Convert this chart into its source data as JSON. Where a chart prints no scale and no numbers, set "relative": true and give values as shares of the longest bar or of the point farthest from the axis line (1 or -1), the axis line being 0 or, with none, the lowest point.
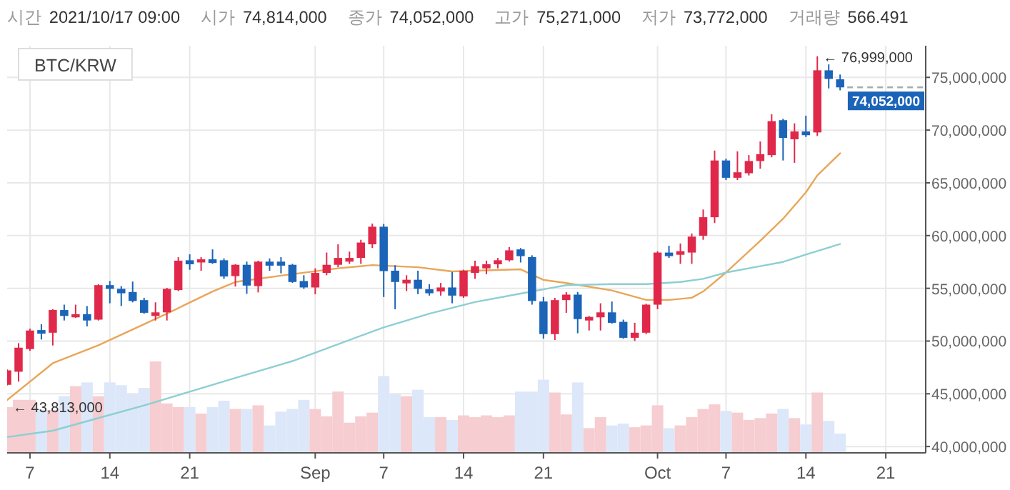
{
  "chart_data": [
    {
      "type": "candlestick",
      "title": "BTC/KRW",
      "annotations": [
        "시간",
        "2021/10/17 09:00",
        "시가",
        "74,814,000",
        "종가",
        "74,052,000",
        "고가",
        "75,271,000",
        "저가",
        "73,772,000",
        "거래량",
        "566.491",
        {
          "text": "← 76,999,000",
          "x": "2021-10-15",
          "y": 76999000
        },
        {
          "text": "← 43,813,000",
          "x": "2021-08-05",
          "y": 43813000
        }
      ],
      "x": [
        "2021-08-05",
        "2021-08-06",
        "2021-08-07",
        "2021-08-08",
        "2021-08-09",
        "2021-08-10",
        "2021-08-11",
        "2021-08-12",
        "2021-08-13",
        "2021-08-14",
        "2021-08-15",
        "2021-08-16",
        "2021-08-17",
        "2021-08-18",
        "2021-08-19",
        "2021-08-20",
        "2021-08-21",
        "2021-08-22",
        "2021-08-23",
        "2021-08-24",
        "2021-08-25",
        "2021-08-26",
        "2021-08-27",
        "2021-08-28",
        "2021-08-29",
        "2021-08-30",
        "2021-08-31",
        "2021-09-01",
        "2021-09-02",
        "2021-09-03",
        "2021-09-04",
        "2021-09-05",
        "2021-09-06",
        "2021-09-07",
        "2021-09-08",
        "2021-09-09",
        "2021-09-10",
        "2021-09-11",
        "2021-09-12",
        "2021-09-13",
        "2021-09-14",
        "2021-09-15",
        "2021-09-16",
        "2021-09-17",
        "2021-09-18",
        "2021-09-19",
        "2021-09-20",
        "2021-09-21",
        "2021-09-22",
        "2021-09-23",
        "2021-09-24",
        "2021-09-25",
        "2021-09-26",
        "2021-09-27",
        "2021-09-28",
        "2021-09-29",
        "2021-09-30",
        "2021-10-01",
        "2021-10-02",
        "2021-10-03",
        "2021-10-04",
        "2021-10-05",
        "2021-10-06",
        "2021-10-07",
        "2021-10-08",
        "2021-10-09",
        "2021-10-10",
        "2021-10-11",
        "2021-10-12",
        "2021-10-13",
        "2021-10-14",
        "2021-10-15",
        "2021-10-16",
        "2021-10-17"
      ],
      "ohlc": [
        [
          45850000,
          47300000,
          45800000,
          47220000
        ],
        [
          47090000,
          49800000,
          46150000,
          49370000
        ],
        [
          49240000,
          51170000,
          49070000,
          51000000
        ],
        [
          51040000,
          51600000,
          50140000,
          50700000
        ],
        [
          50790000,
          53020000,
          49580000,
          52940000
        ],
        [
          52940000,
          53450000,
          51950000,
          52380000
        ],
        [
          52250000,
          53450000,
          52200000,
          52550000
        ],
        [
          52550000,
          53320000,
          51390000,
          51950000
        ],
        [
          52030000,
          55380000,
          51950000,
          55300000
        ],
        [
          55300000,
          55690000,
          53580000,
          54950000
        ],
        [
          54950000,
          55210000,
          53320000,
          54530000
        ],
        [
          54650000,
          55640000,
          53670000,
          53800000
        ],
        [
          53880000,
          54100000,
          52590000,
          52680000
        ],
        [
          52380000,
          53670000,
          51950000,
          52720000
        ],
        [
          52720000,
          55040000,
          51950000,
          54950000
        ],
        [
          54830000,
          57960000,
          54740000,
          57620000
        ],
        [
          57660000,
          58220000,
          56760000,
          57280000
        ],
        [
          57450000,
          57960000,
          56670000,
          57750000
        ],
        [
          57750000,
          58690000,
          57320000,
          57400000
        ],
        [
          57660000,
          57830000,
          55900000,
          56120000
        ],
        [
          56160000,
          57300000,
          55170000,
          57230000
        ],
        [
          57230000,
          57530000,
          54480000,
          55260000
        ],
        [
          55210000,
          57620000,
          54610000,
          57530000
        ],
        [
          57530000,
          57830000,
          56670000,
          57150000
        ],
        [
          57530000,
          57960000,
          56420000,
          57150000
        ],
        [
          57230000,
          57320000,
          55510000,
          55600000
        ],
        [
          55690000,
          56240000,
          54950000,
          55080000
        ],
        [
          55080000,
          56890000,
          54440000,
          56460000
        ],
        [
          56460000,
          58390000,
          56240000,
          57230000
        ],
        [
          57230000,
          59170000,
          57000000,
          57880000
        ],
        [
          57530000,
          58480000,
          57320000,
          57880000
        ],
        [
          57880000,
          59600000,
          57320000,
          59340000
        ],
        [
          59170000,
          61140000,
          58820000,
          60840000
        ],
        [
          60840000,
          61100000,
          54180000,
          56630000
        ],
        [
          56670000,
          57190000,
          53020000,
          55600000
        ],
        [
          55470000,
          56240000,
          54740000,
          55810000
        ],
        [
          55810000,
          56670000,
          54440000,
          54950000
        ],
        [
          54910000,
          55380000,
          54310000,
          54530000
        ],
        [
          54700000,
          55510000,
          54310000,
          55080000
        ],
        [
          55080000,
          56550000,
          53580000,
          54310000
        ],
        [
          54230000,
          56760000,
          54100000,
          56670000
        ],
        [
          56460000,
          57620000,
          55900000,
          57100000
        ],
        [
          56890000,
          57620000,
          56330000,
          57280000
        ],
        [
          57280000,
          57880000,
          56890000,
          57660000
        ],
        [
          57660000,
          58910000,
          57530000,
          58600000
        ],
        [
          58690000,
          58820000,
          57450000,
          58050000
        ],
        [
          57960000,
          58130000,
          53450000,
          53800000
        ],
        [
          53750000,
          54180000,
          50230000,
          50660000
        ],
        [
          50660000,
          54100000,
          50100000,
          53880000
        ],
        [
          53880000,
          54650000,
          52680000,
          54400000
        ],
        [
          54400000,
          54650000,
          50740000,
          52080000
        ],
        [
          51950000,
          52380000,
          51000000,
          52290000
        ],
        [
          52250000,
          53580000,
          51000000,
          52720000
        ],
        [
          52720000,
          53750000,
          51650000,
          51730000
        ],
        [
          51820000,
          52030000,
          50230000,
          50310000
        ],
        [
          50310000,
          51730000,
          50010000,
          50790000
        ],
        [
          50790000,
          53540000,
          50660000,
          53450000
        ],
        [
          53450000,
          58520000,
          53020000,
          58390000
        ],
        [
          58390000,
          59040000,
          57880000,
          58050000
        ],
        [
          58180000,
          59250000,
          57320000,
          58520000
        ],
        [
          58390000,
          60200000,
          57320000,
          59900000
        ],
        [
          59980000,
          62470000,
          59600000,
          61740000
        ],
        [
          61740000,
          68060000,
          61190000,
          67120000
        ],
        [
          67120000,
          67290000,
          65270000,
          65480000
        ],
        [
          65480000,
          67980000,
          65270000,
          66000000
        ],
        [
          65910000,
          67630000,
          65700000,
          67070000
        ],
        [
          67070000,
          68920000,
          66340000,
          67720000
        ],
        [
          67630000,
          71500000,
          67420000,
          70850000
        ],
        [
          70940000,
          71070000,
          67120000,
          69260000
        ],
        [
          69130000,
          70640000,
          66900000,
          69870000
        ],
        [
          69870000,
          71370000,
          69350000,
          69520000
        ],
        [
          69780000,
          76999000,
          69440000,
          75670000
        ],
        [
          75670000,
          76230000,
          73950000,
          74850000
        ],
        [
          74814000,
          75271000,
          73772000,
          74052000
        ]
      ],
      "colors": [
        "#e0294a",
        "#e0294a",
        "#e0294a",
        "#1b64b8",
        "#e0294a",
        "#1b64b8",
        "#e0294a",
        "#1b64b8",
        "#e0294a",
        "#1b64b8",
        "#1b64b8",
        "#1b64b8",
        "#1b64b8",
        "#e0294a",
        "#e0294a",
        "#e0294a",
        "#1b64b8",
        "#e0294a",
        "#1b64b8",
        "#1b64b8",
        "#e0294a",
        "#1b64b8",
        "#e0294a",
        "#1b64b8",
        "#1b64b8",
        "#1b64b8",
        "#1b64b8",
        "#e0294a",
        "#e0294a",
        "#e0294a",
        "#e0294a",
        "#e0294a",
        "#e0294a",
        "#1b64b8",
        "#1b64b8",
        "#e0294a",
        "#1b64b8",
        "#1b64b8",
        "#e0294a",
        "#1b64b8",
        "#e0294a",
        "#e0294a",
        "#e0294a",
        "#e0294a",
        "#e0294a",
        "#1b64b8",
        "#1b64b8",
        "#1b64b8",
        "#e0294a",
        "#e0294a",
        "#1b64b8",
        "#e0294a",
        "#e0294a",
        "#1b64b8",
        "#1b64b8",
        "#e0294a",
        "#e0294a",
        "#e0294a",
        "#1b64b8",
        "#e0294a",
        "#e0294a",
        "#e0294a",
        "#e0294a",
        "#1b64b8",
        "#e0294a",
        "#e0294a",
        "#e0294a",
        "#e0294a",
        "#1b64b8",
        "#e0294a",
        "#1b64b8",
        "#e0294a",
        "#1b64b8",
        "#1b64b8"
      ],
      "series": [
        {
          "type": "line",
          "color": "#e8a659",
          "x": [
            "2021-08-05",
            "2021-08-09",
            "2021-08-13",
            "2021-08-19",
            "2021-08-23",
            "2021-08-25",
            "2021-08-29",
            "2021-09-03",
            "2021-09-06",
            "2021-09-10",
            "2021-09-13",
            "2021-09-19",
            "2021-09-21",
            "2021-09-23",
            "2021-09-27",
            "2021-09-30",
            "2021-10-02",
            "2021-10-04",
            "2021-10-05",
            "2021-10-07",
            "2021-10-10",
            "2021-10-12",
            "2021-10-14",
            "2021-10-15",
            "2021-10-17"
          ],
          "values": [
            44400000,
            47900000,
            49600000,
            52600000,
            54700000,
            55600000,
            56200000,
            56900000,
            57200000,
            57000000,
            56600000,
            56800000,
            55800000,
            55500000,
            54800000,
            53900000,
            53900000,
            54100000,
            54700000,
            56500000,
            59500000,
            61600000,
            64100000,
            65700000,
            67800000
          ]
        },
        {
          "type": "line",
          "color": "#8ccfd3",
          "x": [
            "2021-08-05",
            "2021-08-09",
            "2021-08-13",
            "2021-08-17",
            "2021-08-21",
            "2021-08-25",
            "2021-08-30",
            "2021-09-02",
            "2021-09-07",
            "2021-09-11",
            "2021-09-15",
            "2021-09-19",
            "2021-09-23",
            "2021-09-27",
            "2021-09-30",
            "2021-10-03",
            "2021-10-05",
            "2021-10-07",
            "2021-10-10",
            "2021-10-12",
            "2021-10-14",
            "2021-10-17"
          ],
          "values": [
            40900000,
            41500000,
            42700000,
            43900000,
            45200000,
            46500000,
            48100000,
            49300000,
            51300000,
            52600000,
            53700000,
            54500000,
            55300000,
            55400000,
            55400000,
            55600000,
            55900000,
            56500000,
            57100000,
            57500000,
            58200000,
            59200000
          ]
        }
      ],
      "xlim": [
        "2021-08-05",
        "2021-10-24T12:00"
      ],
      "xticks": [
        {
          "value": "2021-08-07",
          "label": "7"
        },
        {
          "value": "2021-08-14",
          "label": "14"
        },
        {
          "value": "2021-08-21",
          "label": "21"
        },
        {
          "value": "2021-09-01",
          "label": "Sep"
        },
        {
          "value": "2021-09-07",
          "label": "7"
        },
        {
          "value": "2021-09-14",
          "label": "14"
        },
        {
          "value": "2021-09-21",
          "label": "21"
        },
        {
          "value": "2021-10-01",
          "label": "Oct"
        },
        {
          "value": "2021-10-07",
          "label": "7"
        },
        {
          "value": "2021-10-14",
          "label": "14"
        },
        {
          "value": "2021-10-21",
          "label": "21"
        }
      ],
      "ylim": [
        39400000,
        78000000
      ],
      "yticks": [
        {
          "value": 40000000,
          "label": "40,000,000"
        },
        {
          "value": 45000000,
          "label": "45,000,000"
        },
        {
          "value": 50000000,
          "label": "50,000,000"
        },
        {
          "value": 55000000,
          "label": "55,000,000"
        },
        {
          "value": 60000000,
          "label": "60,000,000"
        },
        {
          "value": 65000000,
          "label": "65,000,000"
        },
        {
          "value": 70000000,
          "label": "70,000,000"
        },
        {
          "value": 75000000,
          "label": "75,000,000"
        }
      ],
      "ref_lines": [
        {
          "axis": "y",
          "value": 74052000,
          "label": "74,052,000",
          "line_style": "dashed"
        }
      ],
      "grid": true
    },
    {
      "type": "bar",
      "relative": true,
      "xlim": [
        "2021-08-05",
        "2021-10-24T12:00"
      ],
      "x": [
        "2021-08-05",
        "2021-08-06",
        "2021-08-07",
        "2021-08-08",
        "2021-08-09",
        "2021-08-10",
        "2021-08-11",
        "2021-08-12",
        "2021-08-13",
        "2021-08-14",
        "2021-08-15",
        "2021-08-16",
        "2021-08-17",
        "2021-08-18",
        "2021-08-19",
        "2021-08-20",
        "2021-08-21",
        "2021-08-22",
        "2021-08-23",
        "2021-08-24",
        "2021-08-25",
        "2021-08-26",
        "2021-08-27",
        "2021-08-28",
        "2021-08-29",
        "2021-08-30",
        "2021-08-31",
        "2021-09-01",
        "2021-09-02",
        "2021-09-03",
        "2021-09-04",
        "2021-09-05",
        "2021-09-06",
        "2021-09-07",
        "2021-09-08",
        "2021-09-09",
        "2021-09-10",
        "2021-09-11",
        "2021-09-12",
        "2021-09-13",
        "2021-09-14",
        "2021-09-15",
        "2021-09-16",
        "2021-09-17",
        "2021-09-18",
        "2021-09-19",
        "2021-09-20",
        "2021-09-21",
        "2021-09-22",
        "2021-09-23",
        "2021-09-24",
        "2021-09-25",
        "2021-09-26",
        "2021-09-27",
        "2021-09-28",
        "2021-09-29",
        "2021-09-30",
        "2021-10-01",
        "2021-10-02",
        "2021-10-03",
        "2021-10-04",
        "2021-10-05",
        "2021-10-06",
        "2021-10-07",
        "2021-10-08",
        "2021-10-09",
        "2021-10-10",
        "2021-10-11",
        "2021-10-12",
        "2021-10-13",
        "2021-10-14",
        "2021-10-15",
        "2021-10-16",
        "2021-10-17"
      ],
      "values": [
        0.5,
        0.58,
        0.58,
        0.47,
        0.47,
        0.62,
        0.73,
        0.77,
        0.62,
        0.77,
        0.74,
        0.64,
        0.71,
        1,
        0.54,
        0.5,
        0.5,
        0.43,
        0.5,
        0.57,
        0.48,
        0.48,
        0.52,
        0.3,
        0.45,
        0.48,
        0.58,
        0.48,
        0.4,
        0.67,
        0.33,
        0.4,
        0.44,
        0.84,
        0.64,
        0.62,
        0.69,
        0.39,
        0.39,
        0.36,
        0.41,
        0.39,
        0.41,
        0.39,
        0.41,
        0.67,
        0.67,
        0.8,
        0.66,
        0.42,
        0.77,
        0.27,
        0.39,
        0.3,
        0.32,
        0.28,
        0.3,
        0.52,
        0.27,
        0.3,
        0.39,
        0.48,
        0.53,
        0.46,
        0.44,
        0.36,
        0.38,
        0.43,
        0.48,
        0.38,
        0.31,
        0.66,
        0.35,
        0.21
      ],
      "colors": [
        "#f6cdd0",
        "#f6cdd0",
        "#f6cdd0",
        "#dce7f9",
        "#f6cdd0",
        "#dce7f9",
        "#f6cdd0",
        "#dce7f9",
        "#f6cdd0",
        "#dce7f9",
        "#dce7f9",
        "#dce7f9",
        "#dce7f9",
        "#f6cdd0",
        "#f6cdd0",
        "#f6cdd0",
        "#dce7f9",
        "#f6cdd0",
        "#dce7f9",
        "#dce7f9",
        "#f6cdd0",
        "#dce7f9",
        "#f6cdd0",
        "#dce7f9",
        "#dce7f9",
        "#dce7f9",
        "#dce7f9",
        "#f6cdd0",
        "#f6cdd0",
        "#f6cdd0",
        "#f6cdd0",
        "#f6cdd0",
        "#f6cdd0",
        "#dce7f9",
        "#dce7f9",
        "#f6cdd0",
        "#dce7f9",
        "#dce7f9",
        "#f6cdd0",
        "#dce7f9",
        "#f6cdd0",
        "#f6cdd0",
        "#f6cdd0",
        "#f6cdd0",
        "#f6cdd0",
        "#dce7f9",
        "#dce7f9",
        "#dce7f9",
        "#f6cdd0",
        "#f6cdd0",
        "#dce7f9",
        "#f6cdd0",
        "#f6cdd0",
        "#dce7f9",
        "#dce7f9",
        "#f6cdd0",
        "#f6cdd0",
        "#f6cdd0",
        "#dce7f9",
        "#f6cdd0",
        "#f6cdd0",
        "#f6cdd0",
        "#f6cdd0",
        "#dce7f9",
        "#f6cdd0",
        "#f6cdd0",
        "#f6cdd0",
        "#f6cdd0",
        "#dce7f9",
        "#f6cdd0",
        "#dce7f9",
        "#f6cdd0",
        "#dce7f9",
        "#dce7f9"
      ]
    }
  ]
}
